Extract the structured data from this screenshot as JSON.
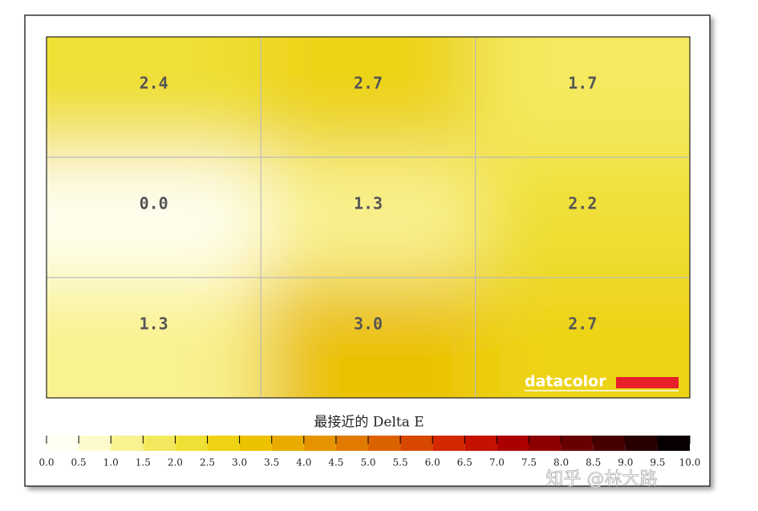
{
  "chart_data": {
    "type": "heatmap",
    "title": "最接近的 Delta E",
    "rows": 3,
    "cols": 3,
    "values": [
      2.4,
      2.7,
      1.7,
      0.0,
      1.3,
      2.2,
      1.3,
      3.0,
      2.7
    ],
    "value_labels": [
      "2.4",
      "2.7",
      "1.7",
      "0.0",
      "1.3",
      "2.2",
      "1.3",
      "3.0",
      "2.7"
    ],
    "colorscale": [
      "#fffff2",
      "#fdfbcc",
      "#f9f290",
      "#f4e95e",
      "#f0df34",
      "#edd313",
      "#ebc100",
      "#e8ab00",
      "#e59400",
      "#e07a00",
      "#dc6200",
      "#d84800",
      "#d42800",
      "#c51200",
      "#ac0000",
      "#8c0000",
      "#680000",
      "#460000",
      "#280000",
      "#080000"
    ],
    "colorbar_lim": [
      0,
      10
    ],
    "colorbar_ticks": [
      {
        "value": 0,
        "label": "0.0"
      },
      {
        "value": 0.5,
        "label": "0.5"
      },
      {
        "value": 1,
        "label": "1.0"
      },
      {
        "value": 1.5,
        "label": "1.5"
      },
      {
        "value": 2,
        "label": "2.0"
      },
      {
        "value": 2.5,
        "label": "2.5"
      },
      {
        "value": 3,
        "label": "3.0"
      },
      {
        "value": 3.5,
        "label": "3.5"
      },
      {
        "value": 4,
        "label": "4.0"
      },
      {
        "value": 4.5,
        "label": "4.5"
      },
      {
        "value": 5,
        "label": "5.0"
      },
      {
        "value": 5.5,
        "label": "5.5"
      },
      {
        "value": 6,
        "label": "6.0"
      },
      {
        "value": 6.5,
        "label": "6.5"
      },
      {
        "value": 7,
        "label": "7.0"
      },
      {
        "value": 7.5,
        "label": "7.5"
      },
      {
        "value": 8,
        "label": "8.0"
      },
      {
        "value": 8.5,
        "label": "8.5"
      },
      {
        "value": 9,
        "label": "9.0"
      },
      {
        "value": 9.5,
        "label": "9.5"
      },
      {
        "value": 10,
        "label": "10.0"
      }
    ],
    "logo": "datacolor",
    "watermark": "知乎 @林大路"
  }
}
